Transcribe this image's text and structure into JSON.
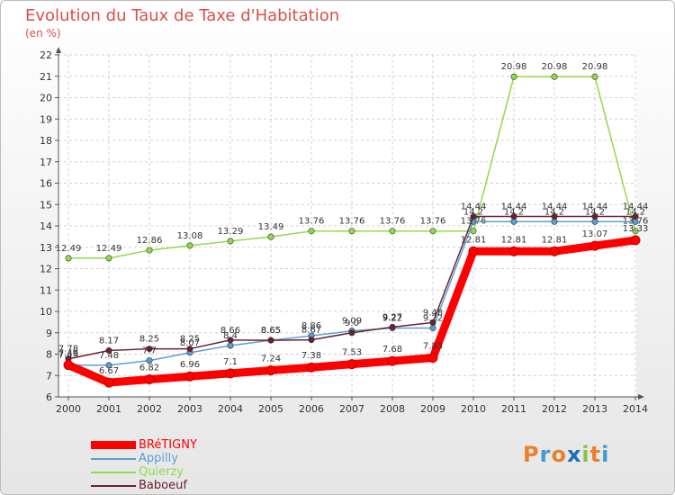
{
  "title": "Evolution du Taux de Taxe d'Habitation",
  "subtitle": "(en %)",
  "logo": "Proxiti",
  "chart_data": {
    "type": "line",
    "x": [
      2000,
      2001,
      2002,
      2003,
      2004,
      2005,
      2006,
      2007,
      2008,
      2009,
      2010,
      2011,
      2012,
      2013,
      2014
    ],
    "ylim": [
      6,
      22
    ],
    "yticks": [
      6,
      7,
      8,
      9,
      10,
      11,
      12,
      13,
      14,
      15,
      16,
      17,
      18,
      19,
      20,
      21,
      22
    ],
    "grid": true,
    "legend_position": "bottom-left",
    "series": [
      {
        "name": "BRéTIGNY",
        "color": "#ff0000",
        "values": [
          7.49,
          6.67,
          6.82,
          6.96,
          7.1,
          7.24,
          7.38,
          7.53,
          7.68,
          7.83,
          12.81,
          12.81,
          12.81,
          13.07,
          13.33
        ],
        "labels": [
          "7.49",
          "6.67",
          "6.82",
          "6.96",
          "7.1",
          "7.24",
          "7.38",
          "7.53",
          "7.68",
          "7.83",
          "12.81",
          "12.81",
          "12.81",
          "13.07",
          "13.33"
        ]
      },
      {
        "name": "Appilly",
        "color": "#5a9ed6",
        "values": [
          7.49,
          7.48,
          7.7,
          8.07,
          8.4,
          8.65,
          8.86,
          9.09,
          9.22,
          9.22,
          14.2,
          14.2,
          14.2,
          14.2,
          14.2
        ],
        "labels": [
          "7.49",
          "7.48",
          "7.7",
          "8.07",
          "8.4",
          "8.65",
          "8.86",
          "9.09",
          "9.22",
          "9.22",
          "14.2",
          "14.2",
          "14.2",
          "14.2",
          "14.2"
        ]
      },
      {
        "name": "Quierzy",
        "color": "#8fdc4a",
        "values": [
          12.49,
          12.49,
          12.86,
          13.08,
          13.29,
          13.49,
          13.76,
          13.76,
          13.76,
          13.76,
          13.76,
          20.98,
          20.98,
          20.98,
          13.76
        ],
        "labels": [
          "12.49",
          "12.49",
          "12.86",
          "13.08",
          "13.29",
          "13.49",
          "13.76",
          "13.76",
          "13.76",
          "13.76",
          "13.76",
          "20.98",
          "20.98",
          "20.98",
          "13.76"
        ]
      },
      {
        "name": "Baboeuf",
        "color": "#6b2230",
        "values": [
          7.78,
          8.17,
          8.25,
          8.25,
          8.66,
          8.65,
          8.67,
          9.0,
          9.27,
          9.48,
          14.44,
          14.44,
          14.44,
          14.44,
          14.44
        ],
        "labels": [
          "7.78",
          "8.17",
          "8.25",
          "8.25",
          "8.66",
          "8.65",
          "8.67",
          "9.0",
          "9.27",
          "9.48",
          "14.44",
          "14.44",
          "14.44",
          "14.44",
          "14.44"
        ]
      }
    ]
  }
}
